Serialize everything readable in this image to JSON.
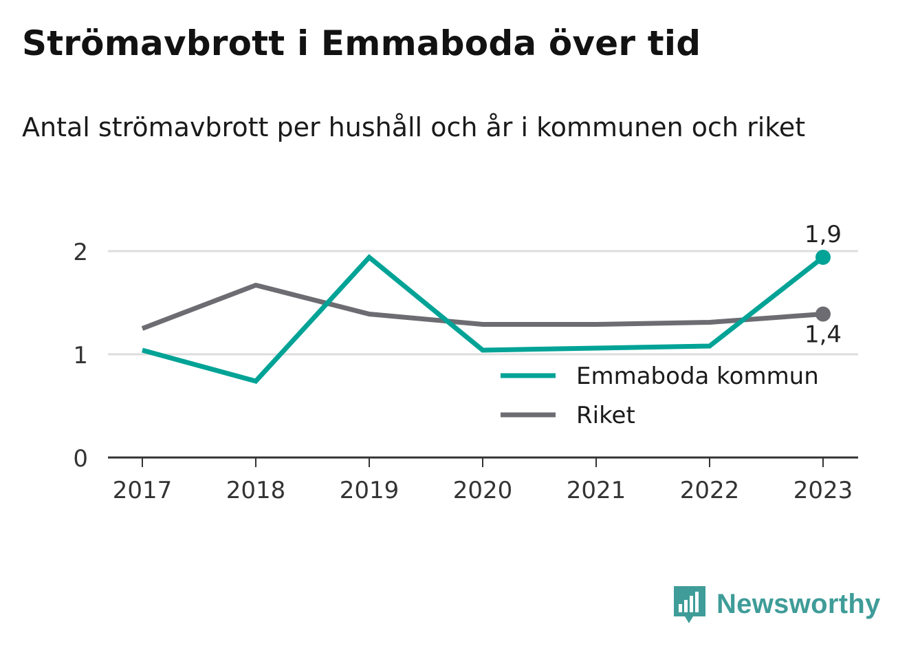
{
  "header": {
    "title": "Strömavbrott i Emmaboda över tid",
    "subtitle": "Antal strömavbrott per hushåll och år i kommunen och riket"
  },
  "brand": {
    "name": "Newsworthy",
    "logo_icon": "bar-chart-speech-bubble-icon"
  },
  "colors": {
    "emmaboda": "#00a396",
    "riket": "#6c6c72",
    "grid": "#dddddd",
    "axis": "#333333",
    "brand": "#3f9c98"
  },
  "chart_data": {
    "type": "line",
    "x": [
      "2017",
      "2018",
      "2019",
      "2020",
      "2021",
      "2022",
      "2023"
    ],
    "ylim": [
      0,
      2
    ],
    "yticks": [
      "0",
      "1",
      "2"
    ],
    "grid": true,
    "legend_position": "bottom-right",
    "series": [
      {
        "name": "Emmaboda kommun",
        "values": [
          1.04,
          0.74,
          1.94,
          1.04,
          1.06,
          1.08,
          1.94
        ],
        "end_label": "1,9",
        "end_label_position": "above"
      },
      {
        "name": "Riket",
        "values": [
          1.25,
          1.67,
          1.39,
          1.29,
          1.29,
          1.31,
          1.39
        ],
        "end_label": "1,4",
        "end_label_position": "below"
      }
    ]
  }
}
